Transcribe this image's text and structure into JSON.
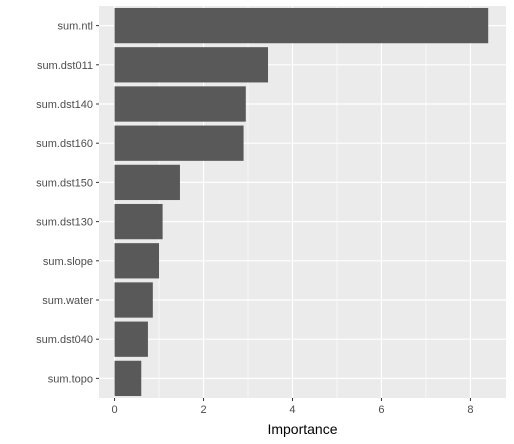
{
  "chart_data": {
    "type": "bar",
    "orientation": "horizontal",
    "categories": [
      "sum.ntl",
      "sum.dst011",
      "sum.dst140",
      "sum.dst160",
      "sum.dst150",
      "sum.dst130",
      "sum.slope",
      "sum.water",
      "sum.dst040",
      "sum.topo"
    ],
    "values": [
      8.4,
      3.45,
      2.95,
      2.9,
      1.47,
      1.08,
      1.0,
      0.86,
      0.75,
      0.6
    ],
    "xlabel": "Importance",
    "ylabel": "",
    "xlim": [
      -0.35,
      8.8
    ],
    "xticks": [
      0,
      2,
      4,
      6,
      8
    ],
    "xtick_labels": [
      "0",
      "2",
      "4",
      "6",
      "8"
    ],
    "grid": true,
    "colors": {
      "bar": "#595959",
      "panel": "#ebebeb",
      "grid": "#ffffff",
      "tick_text": "#4d4d4d",
      "tick_mark": "#333333"
    }
  }
}
